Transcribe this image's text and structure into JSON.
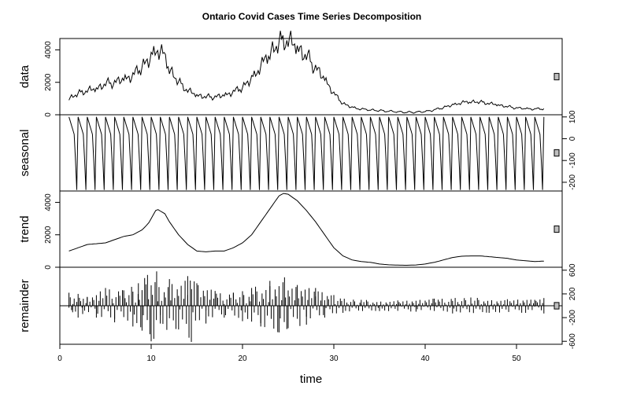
{
  "chart_data": {
    "type": "line",
    "title": "Ontario Covid Cases Time Series Decomposition",
    "xlabel": "time",
    "xlim": [
      0,
      55
    ],
    "x_ticks": [
      0,
      10,
      20,
      30,
      40,
      50
    ],
    "frequency": 7,
    "panels": [
      {
        "name": "data",
        "ylim": [
          0,
          4700
        ],
        "ticks": [
          0,
          2000,
          4000
        ],
        "tick_side": "left",
        "points": [
          [
            1,
            1000
          ],
          [
            2,
            1300
          ],
          [
            3,
            1500
          ],
          [
            4,
            1600
          ],
          [
            5,
            1900
          ],
          [
            6,
            2000
          ],
          [
            7,
            2200
          ],
          [
            8,
            2400
          ],
          [
            9,
            3000
          ],
          [
            10,
            3500
          ],
          [
            10.6,
            4100
          ],
          [
            11.5,
            3600
          ],
          [
            12,
            2800
          ],
          [
            13,
            2000
          ],
          [
            14,
            1500
          ],
          [
            15,
            1200
          ],
          [
            16,
            1100
          ],
          [
            17,
            1100
          ],
          [
            18,
            1200
          ],
          [
            19,
            1400
          ],
          [
            20,
            1700
          ],
          [
            21,
            2200
          ],
          [
            22,
            3000
          ],
          [
            23,
            3800
          ],
          [
            24,
            4400
          ],
          [
            24.7,
            4650
          ],
          [
            25.5,
            4400
          ],
          [
            26,
            4100
          ],
          [
            27,
            3600
          ],
          [
            28,
            2900
          ],
          [
            29,
            2200
          ],
          [
            30,
            1300
          ],
          [
            31,
            700
          ],
          [
            32,
            450
          ],
          [
            33,
            350
          ],
          [
            34,
            300
          ],
          [
            35,
            250
          ],
          [
            36,
            220
          ],
          [
            37,
            180
          ],
          [
            38,
            150
          ],
          [
            39,
            160
          ],
          [
            40,
            200
          ],
          [
            41,
            300
          ],
          [
            42,
            450
          ],
          [
            43,
            600
          ],
          [
            44,
            750
          ],
          [
            45,
            800
          ],
          [
            46,
            780
          ],
          [
            47,
            700
          ],
          [
            48,
            600
          ],
          [
            49,
            500
          ],
          [
            50,
            420
          ],
          [
            51,
            380
          ],
          [
            52,
            350
          ],
          [
            53,
            380
          ]
        ],
        "weekly_amplitude": 200
      },
      {
        "name": "seasonal",
        "ylim": [
          -240,
          110
        ],
        "ticks": [
          -200,
          -100,
          0,
          100
        ],
        "tick_side": "right",
        "weekly_pattern": [
          100,
          80,
          60,
          40,
          20,
          -100,
          -235
        ]
      },
      {
        "name": "trend",
        "ylim": [
          0,
          4700
        ],
        "ticks": [
          0,
          2000,
          4000
        ],
        "tick_side": "left",
        "points": [
          [
            1,
            1000
          ],
          [
            2,
            1200
          ],
          [
            3,
            1400
          ],
          [
            4,
            1450
          ],
          [
            5,
            1500
          ],
          [
            6,
            1700
          ],
          [
            7,
            1900
          ],
          [
            8,
            2000
          ],
          [
            9,
            2300
          ],
          [
            9.7,
            2700
          ],
          [
            10.6,
            3600
          ],
          [
            11.5,
            3300
          ],
          [
            12,
            2800
          ],
          [
            13,
            2000
          ],
          [
            14,
            1400
          ],
          [
            15,
            1000
          ],
          [
            16,
            950
          ],
          [
            17,
            1000
          ],
          [
            18,
            1000
          ],
          [
            19,
            1200
          ],
          [
            20,
            1500
          ],
          [
            21,
            2000
          ],
          [
            22,
            2800
          ],
          [
            23,
            3600
          ],
          [
            24,
            4400
          ],
          [
            24.5,
            4550
          ],
          [
            25,
            4500
          ],
          [
            26,
            4100
          ],
          [
            27,
            3500
          ],
          [
            28,
            2800
          ],
          [
            29,
            2000
          ],
          [
            30,
            1200
          ],
          [
            31,
            700
          ],
          [
            32,
            450
          ],
          [
            33,
            350
          ],
          [
            34,
            300
          ],
          [
            35,
            200
          ],
          [
            36,
            150
          ],
          [
            37,
            130
          ],
          [
            38,
            120
          ],
          [
            39,
            140
          ],
          [
            40,
            200
          ],
          [
            41,
            300
          ],
          [
            42,
            450
          ],
          [
            43,
            600
          ],
          [
            44,
            680
          ],
          [
            45,
            700
          ],
          [
            46,
            700
          ],
          [
            47,
            650
          ],
          [
            48,
            600
          ],
          [
            49,
            550
          ],
          [
            50,
            450
          ],
          [
            51,
            400
          ],
          [
            52,
            350
          ],
          [
            53,
            380
          ]
        ]
      },
      {
        "name": "remainder",
        "ylim": [
          -650,
          650
        ],
        "ticks": [
          -600,
          -200,
          200,
          600
        ],
        "tick_side": "right",
        "x_range": [
          1,
          53
        ],
        "spikes": [
          [
            1,
            220
          ],
          [
            1.4,
            -110
          ],
          [
            2,
            200
          ],
          [
            2.5,
            -140
          ],
          [
            3,
            150
          ],
          [
            4,
            -200
          ],
          [
            5,
            300
          ],
          [
            6,
            -280
          ],
          [
            7,
            260
          ],
          [
            8,
            -350
          ],
          [
            8.6,
            380
          ],
          [
            9,
            -420
          ],
          [
            9.6,
            520
          ],
          [
            10,
            -600
          ],
          [
            10.6,
            580
          ],
          [
            11,
            -300
          ],
          [
            12,
            450
          ],
          [
            13,
            -400
          ],
          [
            14,
            500
          ],
          [
            14.4,
            -610
          ],
          [
            15,
            380
          ],
          [
            16,
            -300
          ],
          [
            17,
            250
          ],
          [
            18,
            -200
          ],
          [
            19,
            220
          ],
          [
            20,
            -260
          ],
          [
            21,
            300
          ],
          [
            22,
            -350
          ],
          [
            23,
            420
          ],
          [
            24,
            -450
          ],
          [
            24.6,
            480
          ],
          [
            25,
            -380
          ],
          [
            26,
            350
          ],
          [
            27,
            -320
          ],
          [
            28,
            300
          ],
          [
            29,
            -200
          ],
          [
            30,
            180
          ],
          [
            31,
            -120
          ],
          [
            33,
            100
          ],
          [
            35,
            -90
          ],
          [
            37,
            90
          ],
          [
            39,
            -100
          ],
          [
            41,
            120
          ],
          [
            43,
            -130
          ],
          [
            45,
            140
          ],
          [
            47,
            -120
          ],
          [
            49,
            110
          ],
          [
            51,
            -120
          ],
          [
            52,
            100
          ],
          [
            53,
            -130
          ]
        ],
        "zero_line": true
      }
    ],
    "scale_bars": true
  }
}
